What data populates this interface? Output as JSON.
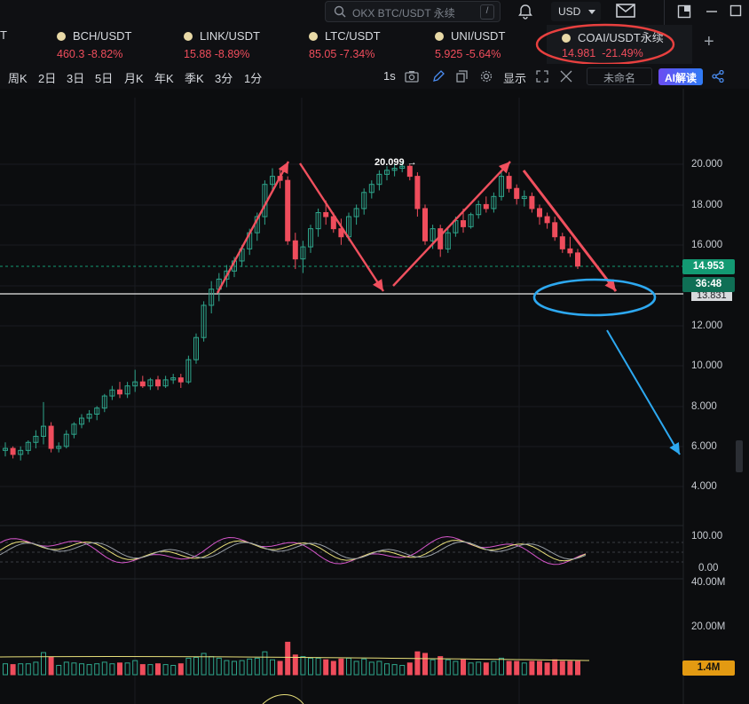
{
  "header": {
    "search_placeholder": "OKX BTC/USDT 永续",
    "search_shortcut": "/",
    "currency": "USD"
  },
  "tickers": [
    {
      "symbol": "BCH/USDT",
      "price": "460.3",
      "change": "-8.82%"
    },
    {
      "symbol": "LINK/USDT",
      "price": "15.88",
      "change": "-8.89%"
    },
    {
      "symbol": "LTC/USDT",
      "price": "85.05",
      "change": "-7.34%"
    },
    {
      "symbol": "UNI/USDT",
      "price": "5.925",
      "change": "-5.64%"
    },
    {
      "symbol": "COAI/USDT永续",
      "price": "14.981",
      "change": "-21.49%"
    }
  ],
  "add_tab": "+",
  "timeframes": [
    "周K",
    "2日",
    "3日",
    "5日",
    "月K",
    "年K",
    "季K",
    "3分",
    "1分"
  ],
  "toolbar": {
    "interval": "1s",
    "display_label": "显示",
    "unnamed_label": "未命名",
    "ai_label": "AI解读"
  },
  "price_axis": {
    "ticks": [
      "20.000",
      "18.000",
      "16.000",
      "12.000",
      "10.000",
      "8.000",
      "6.000",
      "4.000"
    ],
    "current_price": "14.953",
    "countdown": "36:48",
    "hidden_line_label": "13.831",
    "high_marker": "20.099"
  },
  "indicator_axis": {
    "top": "100.00",
    "bottom": "0.00"
  },
  "volume_axis": {
    "top": "40.00M",
    "mid": "20.00M",
    "current": "1.4M"
  },
  "colors": {
    "up": "#2ea58b",
    "down": "#ef4d5c",
    "arrow_red": "#f0505e",
    "arrow_blue": "#2da8f0",
    "countdown_bg": "#139a73",
    "volume_tag_bg": "#e39a12"
  },
  "chart_data": {
    "type": "candlestick",
    "ohlc": [
      [
        5.8,
        6.2,
        5.5,
        5.9
      ],
      [
        5.9,
        6.0,
        5.4,
        5.6
      ],
      [
        5.6,
        6.0,
        5.3,
        5.8
      ],
      [
        5.8,
        6.3,
        5.6,
        6.2
      ],
      [
        6.2,
        6.8,
        5.9,
        6.5
      ],
      [
        6.5,
        8.2,
        6.1,
        7.0
      ],
      [
        7.0,
        7.2,
        5.7,
        5.9
      ],
      [
        5.9,
        6.2,
        5.7,
        6.0
      ],
      [
        6.0,
        6.8,
        5.9,
        6.6
      ],
      [
        6.6,
        7.2,
        6.4,
        7.1
      ],
      [
        7.1,
        7.6,
        6.9,
        7.4
      ],
      [
        7.4,
        7.8,
        7.2,
        7.6
      ],
      [
        7.6,
        8.0,
        7.3,
        7.9
      ],
      [
        7.9,
        8.6,
        7.7,
        8.5
      ],
      [
        8.5,
        9.0,
        8.3,
        8.8
      ],
      [
        8.8,
        9.2,
        8.4,
        8.6
      ],
      [
        8.6,
        9.2,
        8.4,
        9.0
      ],
      [
        9.0,
        9.8,
        8.7,
        9.2
      ],
      [
        9.2,
        9.5,
        8.9,
        9.0
      ],
      [
        9.0,
        9.4,
        8.8,
        9.3
      ],
      [
        9.3,
        9.5,
        8.8,
        9.0
      ],
      [
        9.0,
        9.5,
        8.9,
        9.3
      ],
      [
        9.3,
        9.6,
        9.1,
        9.4
      ],
      [
        9.4,
        9.6,
        8.9,
        9.2
      ],
      [
        9.2,
        10.5,
        9.1,
        10.3
      ],
      [
        10.3,
        11.6,
        10.1,
        11.4
      ],
      [
        11.4,
        13.2,
        11.2,
        13.0
      ],
      [
        13.0,
        14.2,
        12.6,
        13.8
      ],
      [
        13.8,
        14.6,
        13.2,
        14.3
      ],
      [
        14.3,
        15.0,
        13.9,
        14.7
      ],
      [
        14.7,
        15.4,
        14.4,
        15.2
      ],
      [
        15.2,
        16.0,
        14.9,
        15.8
      ],
      [
        15.8,
        16.8,
        15.5,
        16.6
      ],
      [
        16.6,
        17.6,
        16.2,
        17.4
      ],
      [
        17.4,
        19.2,
        17.0,
        19.0
      ],
      [
        19.0,
        19.8,
        18.6,
        19.4
      ],
      [
        19.4,
        19.8,
        18.8,
        19.2
      ],
      [
        19.2,
        19.4,
        16.0,
        16.2
      ],
      [
        16.2,
        16.6,
        14.8,
        15.3
      ],
      [
        15.3,
        16.2,
        14.6,
        15.9
      ],
      [
        15.9,
        17.0,
        15.6,
        16.8
      ],
      [
        16.8,
        17.8,
        16.4,
        17.6
      ],
      [
        17.6,
        18.2,
        17.0,
        17.4
      ],
      [
        17.4,
        17.6,
        16.6,
        16.8
      ],
      [
        16.8,
        17.3,
        16.0,
        16.4
      ],
      [
        16.4,
        17.6,
        16.2,
        17.4
      ],
      [
        17.4,
        18.0,
        17.0,
        17.8
      ],
      [
        17.8,
        18.8,
        17.5,
        18.6
      ],
      [
        18.6,
        19.2,
        18.3,
        19.0
      ],
      [
        19.0,
        19.7,
        18.7,
        19.5
      ],
      [
        19.5,
        19.9,
        19.2,
        19.7
      ],
      [
        19.7,
        20.0,
        19.4,
        19.8
      ],
      [
        19.8,
        20.099,
        19.6,
        19.9
      ],
      [
        19.9,
        20.0,
        19.2,
        19.4
      ],
      [
        19.4,
        19.6,
        17.4,
        17.8
      ],
      [
        17.8,
        18.0,
        16.0,
        16.2
      ],
      [
        16.2,
        17.0,
        15.8,
        16.8
      ],
      [
        16.8,
        17.0,
        15.4,
        15.8
      ],
      [
        15.8,
        16.8,
        15.6,
        16.6
      ],
      [
        16.6,
        17.4,
        16.4,
        17.2
      ],
      [
        17.2,
        17.8,
        16.6,
        16.9
      ],
      [
        16.9,
        17.6,
        16.8,
        17.5
      ],
      [
        17.5,
        18.2,
        17.3,
        18.0
      ],
      [
        18.0,
        18.4,
        17.6,
        17.8
      ],
      [
        17.8,
        18.6,
        17.6,
        18.4
      ],
      [
        18.4,
        19.6,
        18.2,
        19.4
      ],
      [
        19.4,
        19.6,
        18.6,
        18.8
      ],
      [
        18.8,
        19.0,
        18.0,
        18.3
      ],
      [
        18.3,
        18.7,
        17.9,
        18.4
      ],
      [
        18.4,
        18.6,
        17.6,
        17.8
      ],
      [
        17.8,
        18.0,
        17.0,
        17.4
      ],
      [
        17.4,
        17.6,
        16.8,
        17.1
      ],
      [
        17.1,
        17.4,
        16.2,
        16.4
      ],
      [
        16.4,
        16.6,
        15.6,
        15.8
      ],
      [
        15.8,
        16.4,
        15.4,
        15.6
      ],
      [
        15.6,
        15.8,
        14.8,
        14.95
      ]
    ]
  }
}
